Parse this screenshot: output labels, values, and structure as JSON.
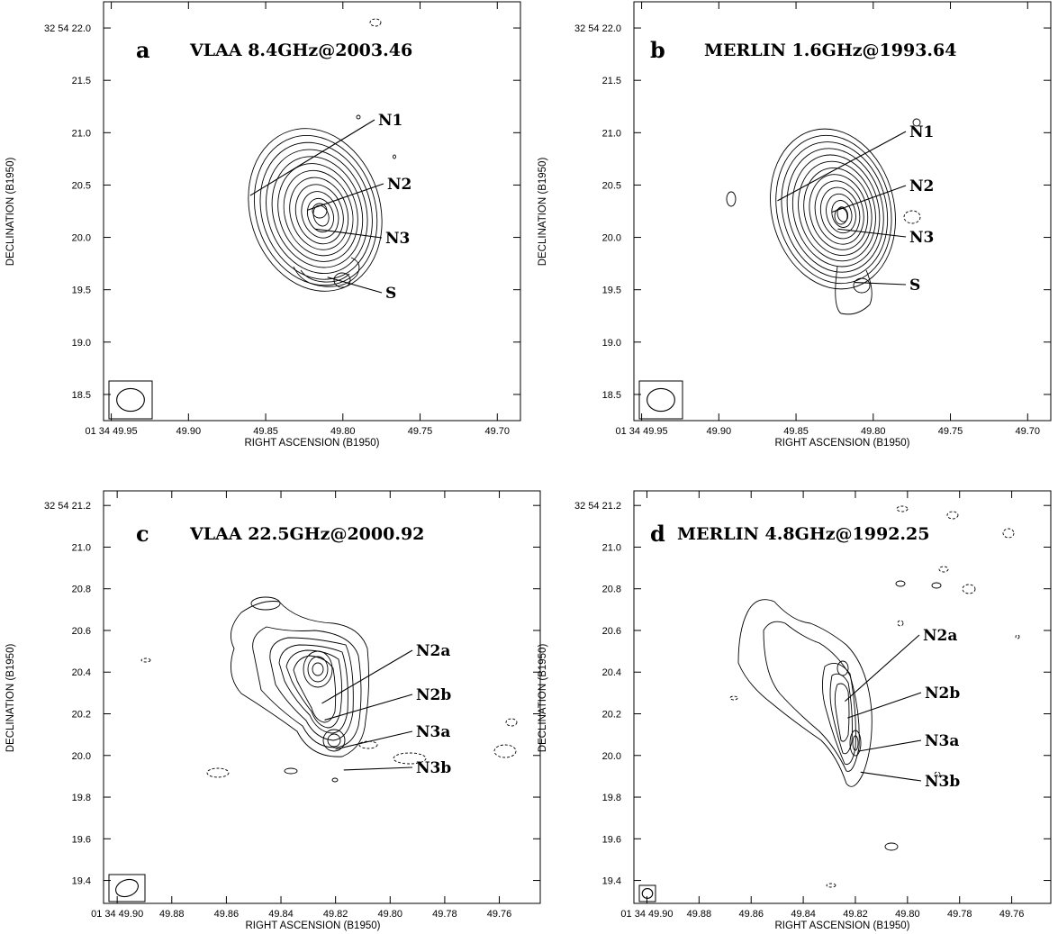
{
  "figure": {
    "panels": [
      {
        "id": "a",
        "letter": "a",
        "title": "VLAA 8.4GHz@2003.46",
        "xlabel": "RIGHT ASCENSION (B1950)",
        "ylabel": "DECLINATION (B1950)",
        "xticks": [
          "01 34 49.95",
          "49.90",
          "49.85",
          "49.80",
          "49.75",
          "49.70"
        ],
        "xtick_values": [
          49.95,
          49.9,
          49.85,
          49.8,
          49.75,
          49.7
        ],
        "xlim": [
          49.955,
          49.685
        ],
        "yticks": [
          "32 54 22.0",
          "21.5",
          "21.0",
          "20.5",
          "20.0",
          "19.5",
          "19.0",
          "18.5"
        ],
        "ytick_values": [
          22.0,
          21.5,
          21.0,
          20.5,
          20.0,
          19.5,
          19.0,
          18.5
        ],
        "ylim": [
          18.25,
          22.25
        ],
        "components": [
          {
            "name": "N1",
            "ra": 49.86,
            "dec": 20.4
          },
          {
            "name": "N2",
            "ra": 49.823,
            "dec": 20.26
          },
          {
            "name": "N3",
            "ra": 49.818,
            "dec": 20.08
          },
          {
            "name": "S",
            "ra": 49.81,
            "dec": 19.62
          }
        ],
        "beam": {
          "major": 0.042,
          "minor": 0.2,
          "pa": 0
        }
      },
      {
        "id": "b",
        "letter": "b",
        "title": "MERLIN 1.6GHz@1993.64",
        "xlabel": "RIGHT ASCENSION (B1950)",
        "ylabel": "DECLINATION (B1950)",
        "xticks": [
          "01 34 49.95",
          "49.90",
          "49.85",
          "49.80",
          "49.75",
          "49.70"
        ],
        "xtick_values": [
          49.95,
          49.9,
          49.85,
          49.8,
          49.75,
          49.7
        ],
        "xlim": [
          49.955,
          49.685
        ],
        "yticks": [
          "32 54 22.0",
          "21.5",
          "21.0",
          "20.5",
          "20.0",
          "19.5",
          "19.0",
          "18.5"
        ],
        "ytick_values": [
          22.0,
          21.5,
          21.0,
          20.5,
          20.0,
          19.5,
          19.0,
          18.5
        ],
        "ylim": [
          18.25,
          22.25
        ],
        "components": [
          {
            "name": "N1",
            "ra": 49.862,
            "dec": 20.35
          },
          {
            "name": "N2",
            "ra": 49.827,
            "dec": 20.24
          },
          {
            "name": "N3",
            "ra": 49.823,
            "dec": 20.08
          },
          {
            "name": "S",
            "ra": 49.812,
            "dec": 19.57
          }
        ],
        "beam": {
          "major": 0.28,
          "minor": 0.23,
          "pa": 0
        }
      },
      {
        "id": "c",
        "letter": "c",
        "title": "VLAA 22.5GHz@2000.92",
        "xlabel": "RIGHT ASCENSION (B1950)",
        "ylabel": "DECLINATION (B1950)",
        "xticks": [
          "01 34 49.90",
          "49.88",
          "49.86",
          "49.84",
          "49.82",
          "49.80",
          "49.78",
          "49.76"
        ],
        "xtick_values": [
          49.9,
          49.88,
          49.86,
          49.84,
          49.82,
          49.8,
          49.78,
          49.76
        ],
        "xlim": [
          49.905,
          49.745
        ],
        "yticks": [
          "32 54 21.2",
          "21.0",
          "20.8",
          "20.6",
          "20.4",
          "20.2",
          "20.0",
          "19.8",
          "19.6",
          "19.4"
        ],
        "ytick_values": [
          21.2,
          21.0,
          20.8,
          20.6,
          20.4,
          20.2,
          20.0,
          19.8,
          19.6,
          19.4
        ],
        "ylim": [
          19.29,
          21.27
        ],
        "components": [
          {
            "name": "N2a",
            "ra": 49.825,
            "dec": 20.25
          },
          {
            "name": "N2b",
            "ra": 49.824,
            "dec": 20.17
          },
          {
            "name": "N3a",
            "ra": 49.82,
            "dec": 20.03
          },
          {
            "name": "N3b",
            "ra": 49.817,
            "dec": 19.93
          }
        ],
        "beam": {
          "major": 0.09,
          "minor": 0.062,
          "pa": 0
        }
      },
      {
        "id": "d",
        "letter": "d",
        "title": "MERLIN 4.8GHz@1992.25",
        "xlabel": "RIGHT ASCENSION (B1950)",
        "ylabel": "DECLINATION (B1950)",
        "xticks": [
          "01 34 49.90",
          "49.88",
          "49.86",
          "49.84",
          "49.82",
          "49.80",
          "49.78",
          "49.76"
        ],
        "xtick_values": [
          49.9,
          49.88,
          49.86,
          49.84,
          49.82,
          49.8,
          49.78,
          49.76
        ],
        "xlim": [
          49.905,
          49.745
        ],
        "yticks": [
          "32 54 21.2",
          "21.0",
          "20.8",
          "20.6",
          "20.4",
          "20.2",
          "20.0",
          "19.8",
          "19.6",
          "19.4"
        ],
        "ytick_values": [
          21.2,
          21.0,
          20.8,
          20.6,
          20.4,
          20.2,
          20.0,
          19.8,
          19.6,
          19.4
        ],
        "ylim": [
          19.29,
          21.27
        ],
        "components": [
          {
            "name": "N2a",
            "ra": 49.824,
            "dec": 20.26
          },
          {
            "name": "N2b",
            "ra": 49.823,
            "dec": 20.18
          },
          {
            "name": "N3a",
            "ra": 49.819,
            "dec": 20.02
          },
          {
            "name": "N3b",
            "ra": 49.818,
            "dec": 19.92
          }
        ],
        "beam": {
          "major": 0.06,
          "minor": 0.045,
          "pa": 0
        }
      }
    ]
  }
}
